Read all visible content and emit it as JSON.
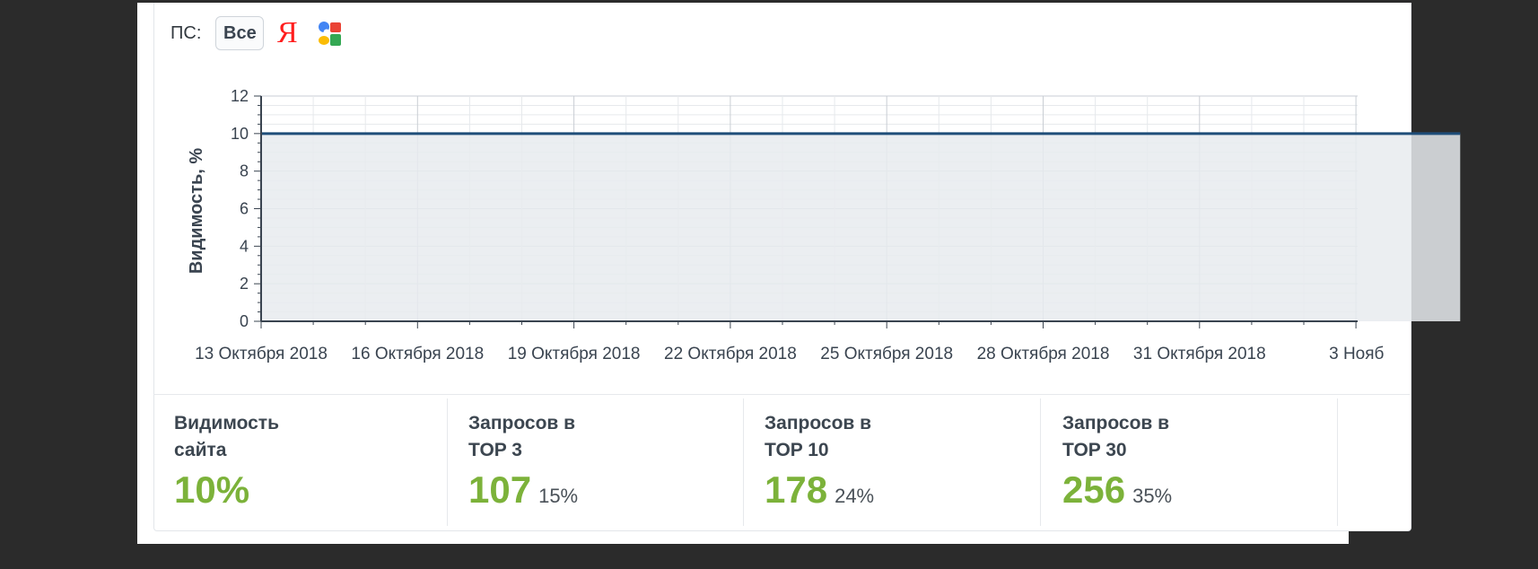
{
  "search_engines": {
    "label": "ПС:",
    "all_label": "Все",
    "yandex_icon": "yandex-icon",
    "yandex_glyph": "Я",
    "google_icon": "google-icon"
  },
  "chart_data": {
    "type": "area",
    "ylabel": "Видимость, %",
    "xlabel": "",
    "ylim": [
      0,
      12
    ],
    "yticks": [
      0,
      2,
      4,
      6,
      8,
      10,
      12
    ],
    "x_tick_labels": [
      "13 Октября 2018",
      "16 Октября 2018",
      "19 Октября 2018",
      "22 Октября 2018",
      "25 Октября 2018",
      "28 Октября 2018",
      "31 Октября 2018",
      "3 Нояб"
    ],
    "x_start": "2018-10-13",
    "x_tick_step_days": 3,
    "series": [
      {
        "values": [
          10,
          10,
          10,
          10,
          10,
          10,
          10,
          10,
          10,
          10,
          10,
          10,
          10,
          10,
          10,
          10,
          10,
          10,
          10,
          10,
          10,
          10,
          10,
          10
        ]
      }
    ],
    "grid": true,
    "colors": {
      "line": "#1f4e79",
      "fill": "#e7ebef",
      "grid": "#c9ced4"
    }
  },
  "stats": [
    {
      "title": "Видимость\nсайта",
      "value": "10%",
      "percent": ""
    },
    {
      "title": "Запросов в\nTOP 3",
      "value": "107",
      "percent": "15%"
    },
    {
      "title": "Запросов в\nTOP 10",
      "value": "178",
      "percent": "24%"
    },
    {
      "title": "Запросов в\nTOP 30",
      "value": "256",
      "percent": "35%"
    }
  ],
  "colors": {
    "stat_value": "#7cb23a",
    "background": "#2b2b2b"
  }
}
